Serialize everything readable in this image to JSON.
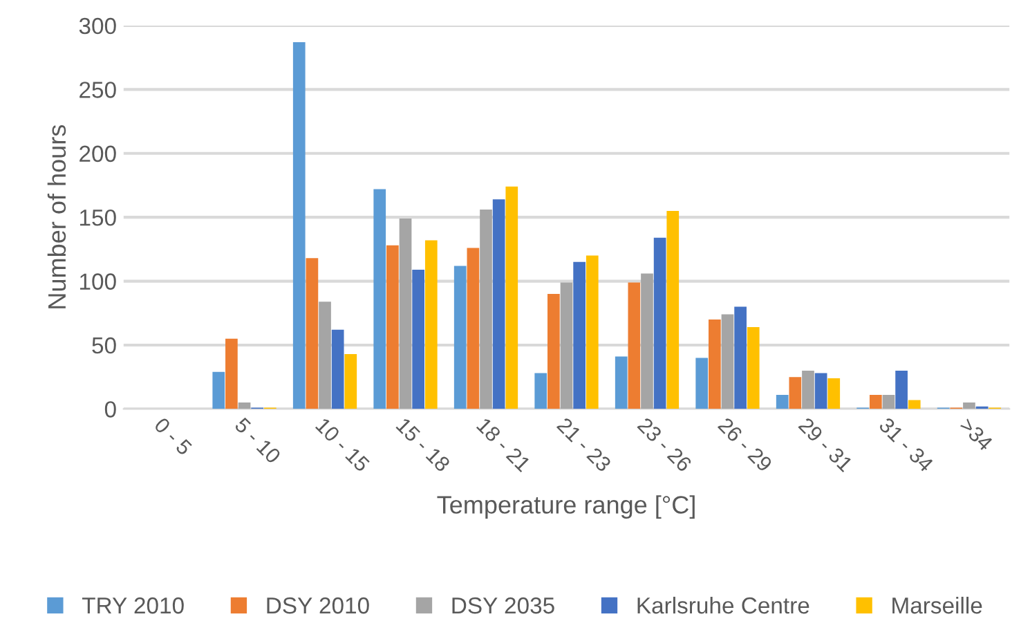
{
  "chart_data": {
    "type": "bar",
    "xlabel": "Temperature range [°C]",
    "ylabel": "Number of hours",
    "categories": [
      "0 - 5",
      "5 - 10",
      "10 - 15",
      "15 - 18",
      "18 - 21",
      "21 - 23",
      "23 - 26",
      "26 - 29",
      "29 - 31",
      "31 - 34",
      ">34"
    ],
    "series": [
      {
        "name": "TRY 2010",
        "color": "#5b9bd5",
        "values": [
          0,
          29,
          287,
          172,
          112,
          28,
          41,
          40,
          11,
          1,
          1
        ]
      },
      {
        "name": "DSY 2010",
        "color": "#ed7d31",
        "values": [
          0,
          55,
          118,
          128,
          126,
          90,
          99,
          70,
          25,
          11,
          1
        ]
      },
      {
        "name": "DSY 2035",
        "color": "#a5a5a5",
        "values": [
          0,
          5,
          84,
          149,
          156,
          99,
          106,
          74,
          30,
          11,
          5
        ]
      },
      {
        "name": "Karlsruhe Centre",
        "color": "#4472c4",
        "values": [
          0,
          1,
          62,
          109,
          164,
          115,
          134,
          80,
          28,
          30,
          2
        ]
      },
      {
        "name": "Marseille",
        "color": "#ffc000",
        "values": [
          0,
          1,
          43,
          132,
          174,
          120,
          155,
          64,
          24,
          7,
          1
        ]
      }
    ],
    "ylim": [
      0,
      300
    ],
    "yticks": [
      0,
      50,
      100,
      150,
      200,
      250,
      300
    ],
    "grid": "y",
    "legend": "bottom"
  }
}
